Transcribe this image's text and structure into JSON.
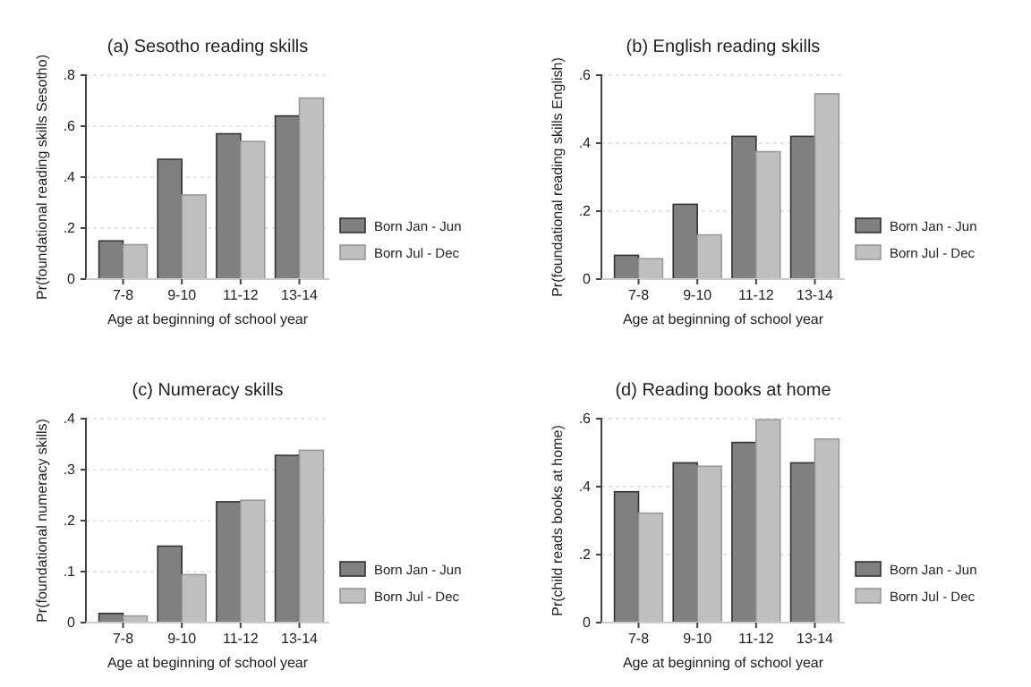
{
  "chart_data": [
    {
      "type": "bar",
      "title": "(a) Sesotho reading skills",
      "xlabel": "Age at beginning of school year",
      "ylabel": "Pr(foundational reading skills Sesotho)",
      "categories": [
        "7-8",
        "9-10",
        "11-12",
        "13-14"
      ],
      "series": [
        {
          "name": "Born Jan - Jun",
          "color": "#808080",
          "values": [
            0.15,
            0.47,
            0.57,
            0.64
          ]
        },
        {
          "name": "Born Jul - Dec",
          "color": "#bfbfbf",
          "values": [
            0.135,
            0.33,
            0.54,
            0.71
          ]
        }
      ],
      "ylim": [
        0,
        0.8
      ],
      "yticks": [
        {
          "value": 0,
          "label": "0"
        },
        {
          "value": 0.2,
          "label": ".2"
        },
        {
          "value": 0.4,
          "label": ".4"
        },
        {
          "value": 0.6,
          "label": ".6"
        },
        {
          "value": 0.8,
          "label": ".8"
        }
      ],
      "grid": "y",
      "legend": "right"
    },
    {
      "type": "bar",
      "title": "(b) English reading skills",
      "xlabel": "Age at beginning of school year",
      "ylabel": "Pr(foundational reading skills English)",
      "categories": [
        "7-8",
        "9-10",
        "11-12",
        "13-14"
      ],
      "series": [
        {
          "name": "Born Jan - Jun",
          "color": "#808080",
          "values": [
            0.07,
            0.22,
            0.42,
            0.42
          ]
        },
        {
          "name": "Born Jul - Dec",
          "color": "#bfbfbf",
          "values": [
            0.06,
            0.13,
            0.375,
            0.545
          ]
        }
      ],
      "ylim": [
        0,
        0.6
      ],
      "yticks": [
        0,
        {
          "value": 0.2,
          "label": ".2"
        },
        {
          "value": 0.4,
          "label": ".4"
        },
        {
          "value": 0.6,
          "label": ".6"
        }
      ],
      "grid": "y",
      "legend": "right"
    },
    {
      "type": "bar",
      "title": "(c) Numeracy skills",
      "xlabel": "Age at beginning of school year",
      "ylabel": "Pr(foundational numeracy skills)",
      "categories": [
        "7-8",
        "9-10",
        "11-12",
        "13-14"
      ],
      "series": [
        {
          "name": "Born Jan - Jun",
          "color": "#808080",
          "values": [
            0.018,
            0.15,
            0.237,
            0.328
          ]
        },
        {
          "name": "Born Jul - Dec",
          "color": "#bfbfbf",
          "values": [
            0.013,
            0.094,
            0.24,
            0.338
          ]
        }
      ],
      "ylim": [
        0,
        0.4
      ],
      "yticks": [
        {
          "value": 0,
          "label": "0"
        },
        {
          "value": 0.1,
          "label": ".1"
        },
        {
          "value": 0.2,
          "label": ".2"
        },
        {
          "value": 0.3,
          "label": ".3"
        },
        {
          "value": 0.4,
          "label": ".4"
        }
      ],
      "grid": "y",
      "legend": "right"
    },
    {
      "type": "bar",
      "title": "(d) Reading books at home",
      "xlabel": "Age at beginning of school year",
      "ylabel": "Pr(child reads books at home)",
      "categories": [
        "7-8",
        "9-10",
        "11-12",
        "13-14"
      ],
      "series": [
        {
          "name": "Born Jan - Jun",
          "color": "#808080",
          "values": [
            0.385,
            0.47,
            0.53,
            0.47
          ]
        },
        {
          "name": "Born Jul - Dec",
          "color": "#bfbfbf",
          "values": [
            0.322,
            0.46,
            0.597,
            0.54
          ]
        }
      ],
      "ylim": [
        0,
        0.6
      ],
      "yticks": [
        0,
        {
          "value": 0.2,
          "label": ".2"
        },
        {
          "value": 0.4,
          "label": ".4"
        },
        {
          "value": 0.6,
          "label": ".6"
        }
      ],
      "grid": "y",
      "legend": "right"
    }
  ]
}
